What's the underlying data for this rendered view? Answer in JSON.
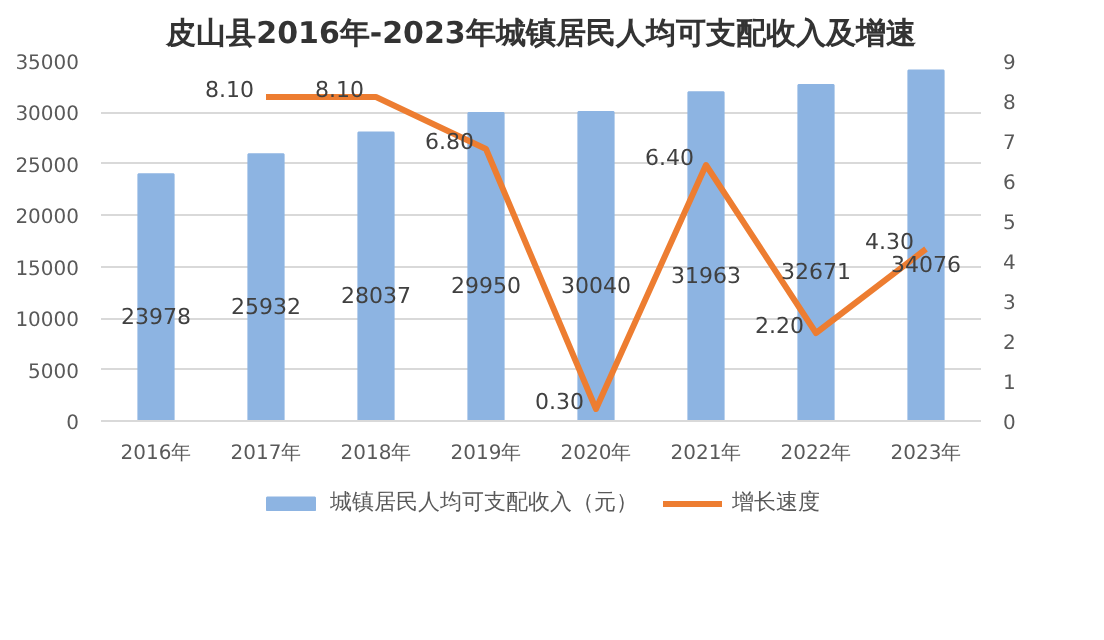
{
  "chart_data": {
    "type": "bar",
    "title": "皮山县2016年-2023年城镇居民人均可支配收入及增速",
    "categories": [
      "2016年",
      "2017年",
      "2018年",
      "2019年",
      "2020年",
      "2021年",
      "2022年",
      "2023年"
    ],
    "series": [
      {
        "name": "城镇居民人均可支配收入（元）",
        "color": "#8db4e2",
        "values": [
          23978,
          25932,
          28037,
          29950,
          30040,
          31963,
          32671,
          34076
        ],
        "data_labels": true
      },
      {
        "name": "增长速度",
        "type": "line",
        "axis": "y2",
        "color": "#ed7d31",
        "values": [
          null,
          8.1,
          8.1,
          6.8,
          0.3,
          6.4,
          2.2,
          4.3
        ],
        "value_labels": [
          null,
          "8.10",
          "8.10",
          "6.80",
          "0.30",
          "6.40",
          "2.20",
          "4.30"
        ]
      }
    ],
    "ylim": [
      0,
      35000
    ],
    "yticks": [
      0,
      5000,
      10000,
      15000,
      20000,
      25000,
      30000,
      35000
    ],
    "y2lim": [
      0,
      9
    ],
    "y2ticks": [
      0,
      1,
      2,
      3,
      4,
      5,
      6,
      7,
      8,
      9
    ],
    "grid": "y",
    "legend": "bottom",
    "marker": "none",
    "line_style": "solid"
  }
}
